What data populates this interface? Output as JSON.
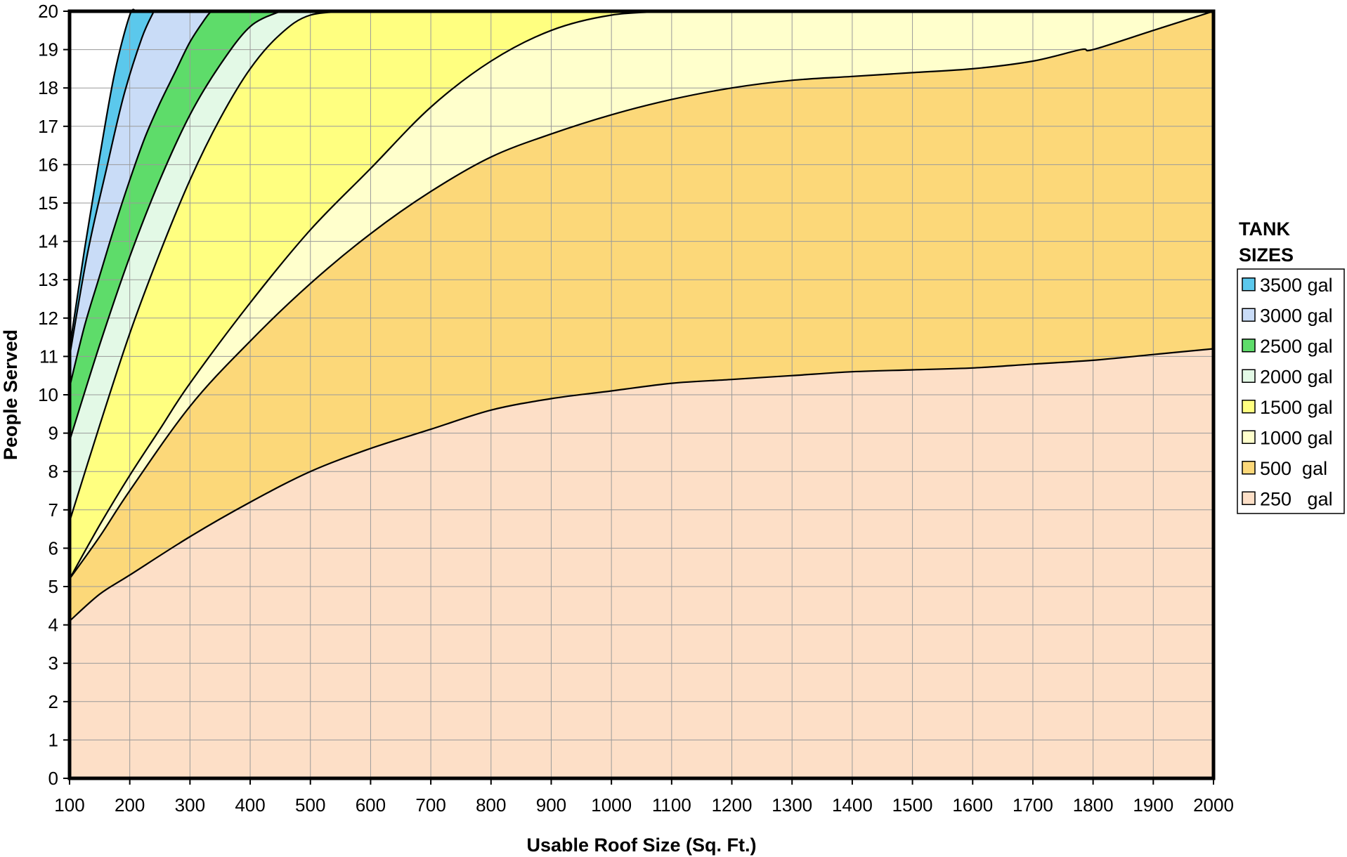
{
  "chart_data": {
    "type": "area",
    "title": "",
    "xlabel": "Usable Roof Size (Sq. Ft.)",
    "ylabel": "People Served",
    "xlim": [
      100,
      2000
    ],
    "ylim": [
      0,
      20
    ],
    "x_ticks": [
      100,
      200,
      300,
      400,
      500,
      600,
      700,
      800,
      900,
      1000,
      1100,
      1200,
      1300,
      1400,
      1500,
      1600,
      1700,
      1800,
      1900,
      2000
    ],
    "y_ticks": [
      0,
      1,
      2,
      3,
      4,
      5,
      6,
      7,
      8,
      9,
      10,
      11,
      12,
      13,
      14,
      15,
      16,
      17,
      18,
      19,
      20
    ],
    "grid": true,
    "legend_title": [
      "TANK",
      "SIZES"
    ],
    "legend_position": "right",
    "series": [
      {
        "name": "3500 gal",
        "color": "#5BC8EC",
        "points": [
          [
            100,
            11.2
          ],
          [
            125,
            13.8
          ],
          [
            150,
            16.2
          ],
          [
            175,
            18.4
          ],
          [
            200,
            19.9
          ],
          [
            210,
            20
          ]
        ]
      },
      {
        "name": "3000 gal",
        "color": "#C9DCF7",
        "points": [
          [
            100,
            11
          ],
          [
            130,
            13.7
          ],
          [
            160,
            15.8
          ],
          [
            190,
            17.8
          ],
          [
            220,
            19.3
          ],
          [
            240,
            20
          ]
        ]
      },
      {
        "name": "2500 gal",
        "color": "#5EDC6A",
        "points": [
          [
            100,
            10.2
          ],
          [
            125,
            11.8
          ],
          [
            150,
            13.1
          ],
          [
            175,
            14.4
          ],
          [
            200,
            15.6
          ],
          [
            225,
            16.7
          ],
          [
            250,
            17.6
          ],
          [
            275,
            18.4
          ],
          [
            300,
            19.2
          ],
          [
            325,
            19.8
          ],
          [
            335,
            20
          ]
        ]
      },
      {
        "name": "2000 gal",
        "color": "#E3F9E6",
        "points": [
          [
            100,
            8.8
          ],
          [
            150,
            11.3
          ],
          [
            200,
            13.6
          ],
          [
            250,
            15.6
          ],
          [
            300,
            17.3
          ],
          [
            350,
            18.6
          ],
          [
            400,
            19.6
          ],
          [
            450,
            20
          ]
        ]
      },
      {
        "name": "1500 gal",
        "color": "#FFFF80",
        "points": [
          [
            100,
            6.7
          ],
          [
            150,
            9.2
          ],
          [
            200,
            11.6
          ],
          [
            250,
            13.7
          ],
          [
            300,
            15.6
          ],
          [
            350,
            17.2
          ],
          [
            400,
            18.5
          ],
          [
            450,
            19.4
          ],
          [
            500,
            19.9
          ],
          [
            575,
            20
          ]
        ]
      },
      {
        "name": "1000 gal",
        "color": "#FFFFCC",
        "points": [
          [
            100,
            5.2
          ],
          [
            150,
            6.6
          ],
          [
            200,
            7.9
          ],
          [
            250,
            9.1
          ],
          [
            300,
            10.3
          ],
          [
            400,
            12.4
          ],
          [
            500,
            14.3
          ],
          [
            600,
            15.9
          ],
          [
            700,
            17.5
          ],
          [
            800,
            18.7
          ],
          [
            900,
            19.5
          ],
          [
            1000,
            19.9
          ],
          [
            1100,
            20
          ]
        ]
      },
      {
        "name": "500  gal",
        "color": "#FCD879",
        "points": [
          [
            100,
            5.2
          ],
          [
            150,
            6.3
          ],
          [
            200,
            7.5
          ],
          [
            300,
            9.7
          ],
          [
            400,
            11.4
          ],
          [
            500,
            12.9
          ],
          [
            600,
            14.2
          ],
          [
            700,
            15.3
          ],
          [
            800,
            16.2
          ],
          [
            900,
            16.8
          ],
          [
            1000,
            17.3
          ],
          [
            1100,
            17.7
          ],
          [
            1200,
            18
          ],
          [
            1300,
            18.2
          ],
          [
            1400,
            18.3
          ],
          [
            1500,
            18.4
          ],
          [
            1600,
            18.5
          ],
          [
            1700,
            18.7
          ],
          [
            1780,
            19
          ],
          [
            1800,
            19
          ],
          [
            1900,
            19.5
          ],
          [
            2000,
            20
          ]
        ]
      },
      {
        "name": "250   gal",
        "color": "#FDDFC7",
        "points": [
          [
            100,
            4.1
          ],
          [
            150,
            4.8
          ],
          [
            200,
            5.3
          ],
          [
            300,
            6.3
          ],
          [
            400,
            7.2
          ],
          [
            500,
            8
          ],
          [
            600,
            8.6
          ],
          [
            700,
            9.1
          ],
          [
            800,
            9.6
          ],
          [
            900,
            9.9
          ],
          [
            1000,
            10.1
          ],
          [
            1100,
            10.3
          ],
          [
            1200,
            10.4
          ],
          [
            1300,
            10.5
          ],
          [
            1400,
            10.6
          ],
          [
            1500,
            10.65
          ],
          [
            1600,
            10.7
          ],
          [
            1700,
            10.8
          ],
          [
            1800,
            10.9
          ],
          [
            1900,
            11.05
          ],
          [
            2000,
            11.2
          ]
        ]
      }
    ]
  }
}
